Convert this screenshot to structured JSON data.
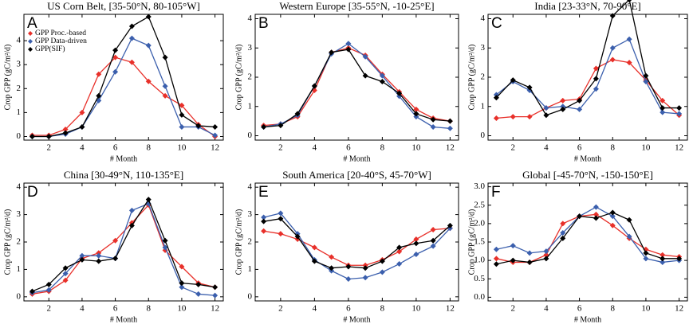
{
  "chart_data": [
    {
      "type": "line",
      "title": "US Corn Belt, [35-50°N, 80-105°W]",
      "label": "A",
      "xlabel": "# Month",
      "ylabel": "Crop GPP (gC/m²/d)",
      "legend": "upper left",
      "x": [
        1,
        2,
        3,
        4,
        5,
        6,
        7,
        8,
        9,
        10,
        11,
        12
      ],
      "xlim": [
        0.5,
        12.5
      ],
      "xticks": [
        2,
        4,
        6,
        8,
        10,
        12
      ],
      "ylim": [
        -0.15,
        5.1
      ],
      "yticks": [
        0,
        1,
        2,
        3,
        4
      ],
      "series": [
        {
          "name": "GPP Proc.-based",
          "color": "#e8302a",
          "values": [
            0.05,
            0.05,
            0.3,
            1.0,
            2.6,
            3.3,
            3.1,
            2.3,
            1.7,
            1.3,
            0.5,
            0.0
          ]
        },
        {
          "name": "GPP Data-driven",
          "color": "#3b5fad",
          "values": [
            0.0,
            0.0,
            0.1,
            0.4,
            1.5,
            2.7,
            4.1,
            3.8,
            2.1,
            0.4,
            0.4,
            0.05
          ]
        },
        {
          "name": "GPP(SIF)",
          "color": "#000000",
          "values": [
            0.0,
            0.0,
            0.15,
            0.4,
            1.7,
            3.6,
            4.6,
            5.0,
            3.3,
            0.9,
            0.45,
            0.4
          ]
        }
      ]
    },
    {
      "type": "line",
      "title": "Western Europe  [35-55°N, -10-25°E]",
      "label": "B",
      "xlabel": "# Month",
      "ylabel": "Crop GPP (gC/m²/d)",
      "x": [
        1,
        2,
        3,
        4,
        5,
        6,
        7,
        8,
        9,
        10,
        11,
        12
      ],
      "xlim": [
        0.5,
        12.5
      ],
      "xticks": [
        2,
        4,
        6,
        8,
        10,
        12
      ],
      "ylim": [
        -0.15,
        4.15
      ],
      "yticks": [
        0,
        1,
        2,
        3,
        4
      ],
      "series": [
        {
          "name": "GPP Proc.-based",
          "color": "#e8302a",
          "values": [
            0.35,
            0.4,
            0.65,
            1.55,
            2.85,
            3.0,
            2.75,
            2.1,
            1.5,
            0.9,
            0.6,
            0.5
          ]
        },
        {
          "name": "GPP Data-driven",
          "color": "#3b5fad",
          "values": [
            0.3,
            0.4,
            0.7,
            1.7,
            2.8,
            3.15,
            2.7,
            2.05,
            1.35,
            0.65,
            0.3,
            0.25
          ]
        },
        {
          "name": "GPP(SIF)",
          "color": "#000000",
          "values": [
            0.3,
            0.35,
            0.75,
            1.7,
            2.85,
            2.95,
            2.05,
            1.85,
            1.45,
            0.75,
            0.55,
            0.5
          ]
        }
      ]
    },
    {
      "type": "line",
      "title": "India  [23-33°N, 70-90°E]",
      "label": "C",
      "xlabel": "# Month",
      "ylabel": "Crop GPP (gC/m²/d)",
      "x": [
        1,
        2,
        3,
        4,
        5,
        6,
        7,
        8,
        9,
        10,
        11,
        12
      ],
      "xlim": [
        0.5,
        12.5
      ],
      "xticks": [
        2,
        4,
        6,
        8,
        10,
        12
      ],
      "ylim": [
        -0.15,
        4.15
      ],
      "yticks": [
        0,
        1,
        2,
        3,
        4
      ],
      "series": [
        {
          "name": "GPP Proc.-based",
          "color": "#e8302a",
          "values": [
            0.6,
            0.65,
            0.65,
            0.95,
            1.2,
            1.25,
            2.3,
            2.6,
            2.5,
            1.9,
            1.2,
            0.7
          ]
        },
        {
          "name": "GPP Data-driven",
          "color": "#3b5fad",
          "values": [
            1.4,
            1.85,
            1.55,
            0.95,
            1.0,
            0.9,
            1.6,
            3.0,
            3.3,
            1.85,
            0.8,
            0.75
          ]
        },
        {
          "name": "GPP(SIF)",
          "color": "#000000",
          "values": [
            1.3,
            1.9,
            1.65,
            0.7,
            0.9,
            1.2,
            1.95,
            4.1,
            4.65,
            2.05,
            0.95,
            0.95
          ]
        }
      ]
    },
    {
      "type": "line",
      "title": "China  [30-49°N, 110-135°E]",
      "label": "D",
      "xlabel": "# Month",
      "ylabel": "Crop GPP (gC/m²/d)",
      "x": [
        1,
        2,
        3,
        4,
        5,
        6,
        7,
        8,
        9,
        10,
        11,
        12
      ],
      "xlim": [
        0.5,
        12.5
      ],
      "xticks": [
        2,
        4,
        6,
        8,
        10,
        12
      ],
      "ylim": [
        -0.15,
        4.15
      ],
      "yticks": [
        0,
        1,
        2,
        3,
        4
      ],
      "series": [
        {
          "name": "GPP Proc.-based",
          "color": "#e8302a",
          "values": [
            0.1,
            0.2,
            0.6,
            1.4,
            1.6,
            2.05,
            2.7,
            3.35,
            1.7,
            1.1,
            0.5,
            0.35
          ]
        },
        {
          "name": "GPP Data-driven",
          "color": "#3b5fad",
          "values": [
            0.15,
            0.25,
            0.85,
            1.5,
            1.5,
            1.4,
            3.15,
            3.4,
            1.8,
            0.35,
            0.1,
            0.05
          ]
        },
        {
          "name": "GPP(SIF)",
          "color": "#000000",
          "values": [
            0.2,
            0.45,
            1.05,
            1.35,
            1.3,
            1.4,
            2.6,
            3.55,
            2.05,
            0.5,
            0.45,
            0.35
          ]
        }
      ]
    },
    {
      "type": "line",
      "title": "South America [20-40°S, 45-70°W]",
      "label": "E",
      "xlabel": "# Month",
      "ylabel": "Crop GPP (gC/m²/d)",
      "x": [
        1,
        2,
        3,
        4,
        5,
        6,
        7,
        8,
        9,
        10,
        11,
        12
      ],
      "xlim": [
        0.5,
        12.5
      ],
      "xticks": [
        2,
        4,
        6,
        8,
        10,
        12
      ],
      "ylim": [
        -0.15,
        4.15
      ],
      "yticks": [
        0,
        1,
        2,
        3,
        4
      ],
      "series": [
        {
          "name": "GPP Proc.-based",
          "color": "#e8302a",
          "values": [
            2.4,
            2.3,
            2.1,
            1.8,
            1.45,
            1.15,
            1.15,
            1.35,
            1.65,
            2.1,
            2.45,
            2.5
          ]
        },
        {
          "name": "GPP Data-driven",
          "color": "#3b5fad",
          "values": [
            2.9,
            3.05,
            2.3,
            1.35,
            0.95,
            0.65,
            0.7,
            0.9,
            1.2,
            1.55,
            1.85,
            2.5
          ]
        },
        {
          "name": "GPP(SIF)",
          "color": "#000000",
          "values": [
            2.75,
            2.85,
            2.2,
            1.3,
            1.05,
            1.1,
            1.05,
            1.3,
            1.8,
            1.95,
            2.05,
            2.6
          ]
        }
      ]
    },
    {
      "type": "line",
      "title": "Global  [-45-70°N, -150-150°E]",
      "label": "F",
      "xlabel": "# Month",
      "ylabel": "Crop GPP (gC/m²/d)",
      "x": [
        1,
        2,
        3,
        4,
        5,
        6,
        7,
        8,
        9,
        10,
        11,
        12
      ],
      "xlim": [
        0.5,
        12.5
      ],
      "xticks": [
        2,
        4,
        6,
        8,
        10,
        12
      ],
      "ylim": [
        -0.1,
        3.1
      ],
      "yticks": [
        {
          "value": 0,
          "label": "0.0"
        },
        {
          "value": 0.5,
          "label": "0.5"
        },
        {
          "value": 1,
          "label": "1.0"
        },
        {
          "value": 1.5,
          "label": "1.5"
        },
        {
          "value": 2,
          "label": "2.0"
        },
        {
          "value": 2.5,
          "label": "2.5"
        },
        {
          "value": 3,
          "label": "3.0"
        }
      ],
      "series": [
        {
          "name": "GPP Proc.-based",
          "color": "#e8302a",
          "values": [
            1.05,
            0.95,
            0.95,
            1.15,
            2.0,
            2.2,
            2.25,
            1.95,
            1.6,
            1.3,
            1.15,
            1.1
          ]
        },
        {
          "name": "GPP Data-driven",
          "color": "#3b5fad",
          "values": [
            1.3,
            1.4,
            1.2,
            1.25,
            1.75,
            2.2,
            2.45,
            2.2,
            1.65,
            1.05,
            0.95,
            1.0
          ]
        },
        {
          "name": "GPP(SIF)",
          "color": "#000000",
          "values": [
            0.9,
            1.0,
            0.95,
            1.05,
            1.6,
            2.2,
            2.15,
            2.3,
            2.1,
            1.2,
            1.05,
            1.05
          ]
        }
      ]
    }
  ]
}
